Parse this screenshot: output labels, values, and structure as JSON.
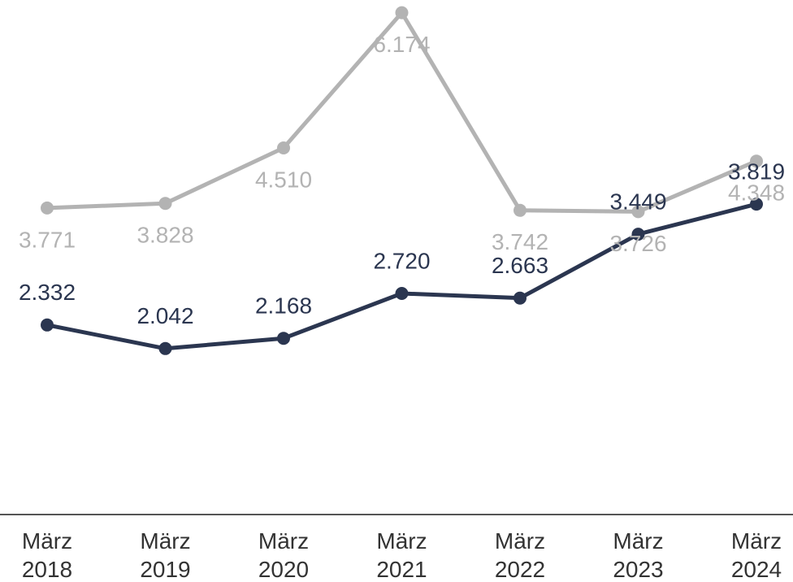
{
  "chart_data": {
    "type": "line",
    "categories": [
      "März 2018",
      "März 2019",
      "März 2020",
      "März 2021",
      "März 2022",
      "März 2023",
      "März 2024"
    ],
    "ylim": [
      0,
      6330
    ],
    "series": [
      {
        "name": null,
        "color": "#b3b3b3",
        "label_color": "#b3b3b3",
        "label_position": "below",
        "values": [
          3771,
          3828,
          4510,
          6174,
          3742,
          3726,
          4348
        ],
        "value_labels": [
          "3.771",
          "3.828",
          "4.510",
          "6.174",
          "3.742",
          "3.726",
          "4.348"
        ]
      },
      {
        "name": null,
        "color": "#2b3650",
        "label_color": "#2b3650",
        "label_position": "above",
        "values": [
          2332,
          2042,
          2168,
          2720,
          2663,
          3449,
          3819
        ],
        "value_labels": [
          "2.332",
          "2.042",
          "2.168",
          "2.720",
          "2.663",
          "3.449",
          "3.819"
        ]
      }
    ]
  }
}
